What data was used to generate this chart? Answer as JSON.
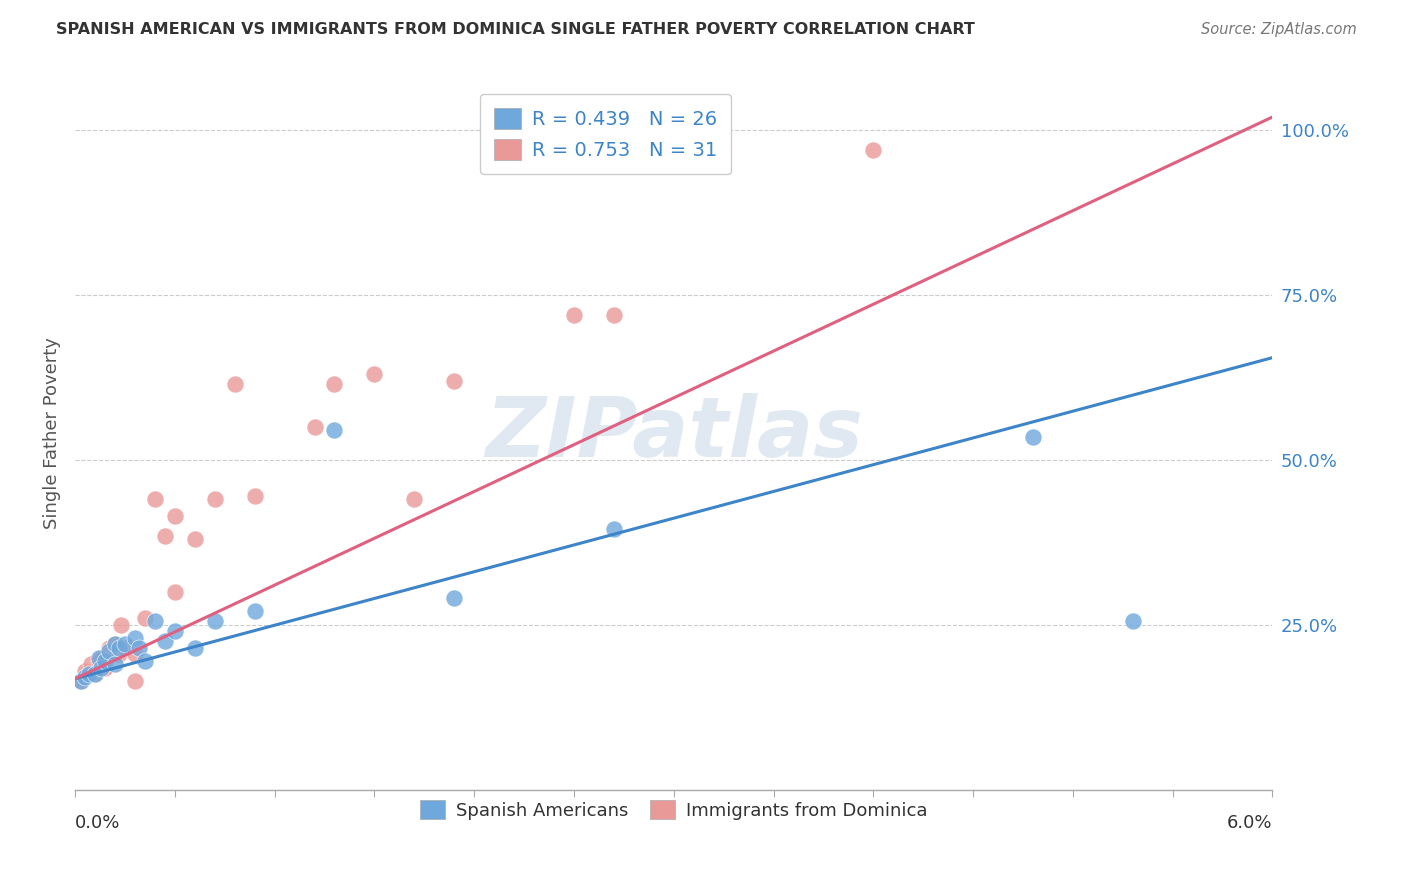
{
  "title": "SPANISH AMERICAN VS IMMIGRANTS FROM DOMINICA SINGLE FATHER POVERTY CORRELATION CHART",
  "source": "Source: ZipAtlas.com",
  "ylabel": "Single Father Poverty",
  "y_ticks": [
    0.0,
    0.25,
    0.5,
    0.75,
    1.0
  ],
  "y_tick_labels": [
    "",
    "25.0%",
    "50.0%",
    "75.0%",
    "100.0%"
  ],
  "x_range": [
    0.0,
    0.06
  ],
  "y_range": [
    0.0,
    1.08
  ],
  "legend_label1": "R = 0.439   N = 26",
  "legend_label2": "R = 0.753   N = 31",
  "color_blue": "#6fa8dc",
  "color_pink": "#ea9999",
  "color_blue_line": "#3d85c8",
  "color_pink_line": "#e06080",
  "watermark": "ZIPatlas",
  "blue_scatter_x": [
    0.0003,
    0.0005,
    0.0007,
    0.001,
    0.0012,
    0.0013,
    0.0015,
    0.0017,
    0.002,
    0.002,
    0.0022,
    0.0025,
    0.003,
    0.0032,
    0.0035,
    0.004,
    0.0045,
    0.005,
    0.006,
    0.007,
    0.009,
    0.013,
    0.019,
    0.027,
    0.048,
    0.053
  ],
  "blue_scatter_y": [
    0.165,
    0.17,
    0.175,
    0.175,
    0.2,
    0.185,
    0.195,
    0.21,
    0.22,
    0.19,
    0.215,
    0.22,
    0.23,
    0.215,
    0.195,
    0.255,
    0.225,
    0.24,
    0.215,
    0.255,
    0.27,
    0.545,
    0.29,
    0.395,
    0.535,
    0.255
  ],
  "pink_scatter_x": [
    0.0003,
    0.0005,
    0.0008,
    0.001,
    0.0012,
    0.0013,
    0.0015,
    0.0017,
    0.002,
    0.0022,
    0.0023,
    0.0025,
    0.003,
    0.003,
    0.0035,
    0.004,
    0.0045,
    0.005,
    0.005,
    0.006,
    0.007,
    0.008,
    0.009,
    0.012,
    0.013,
    0.015,
    0.017,
    0.019,
    0.025,
    0.027,
    0.04
  ],
  "pink_scatter_y": [
    0.165,
    0.18,
    0.19,
    0.175,
    0.195,
    0.2,
    0.185,
    0.215,
    0.22,
    0.205,
    0.25,
    0.215,
    0.165,
    0.205,
    0.26,
    0.44,
    0.385,
    0.3,
    0.415,
    0.38,
    0.44,
    0.615,
    0.445,
    0.55,
    0.615,
    0.63,
    0.44,
    0.62,
    0.72,
    0.72,
    0.97
  ],
  "blue_line_x": [
    0.0,
    0.06
  ],
  "blue_line_y": [
    0.168,
    0.655
  ],
  "pink_line_x": [
    0.0,
    0.06
  ],
  "pink_line_y": [
    0.168,
    1.02
  ]
}
